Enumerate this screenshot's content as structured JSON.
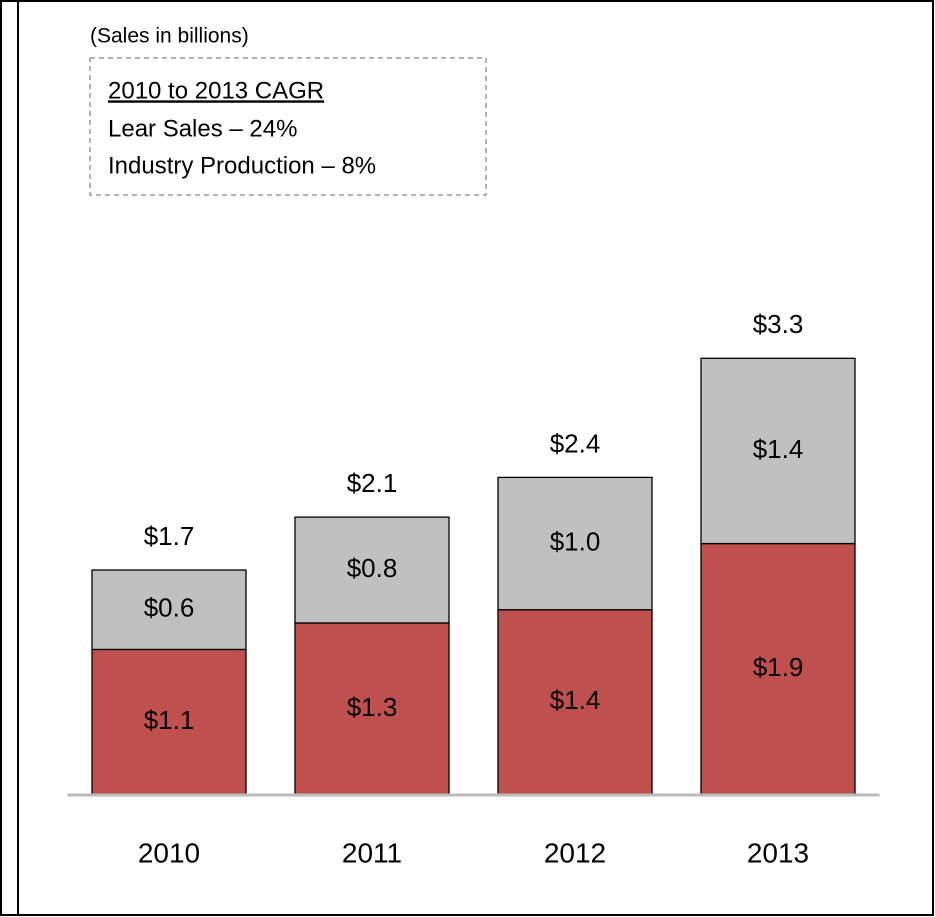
{
  "chart_data": {
    "type": "stacked_bar",
    "subtitle": "(Sales in billions)",
    "annotation": {
      "heading": "2010 to 2013 CAGR",
      "lines": [
        "Lear Sales – 24%",
        "Industry Production – 8%"
      ]
    },
    "categories": [
      "2010",
      "2011",
      "2012",
      "2013"
    ],
    "series": [
      {
        "color": "#c0504d",
        "values": [
          1.1,
          1.3,
          1.4,
          1.9
        ],
        "value_labels": [
          "$1.1",
          "$1.3",
          "$1.4",
          "$1.9"
        ]
      },
      {
        "color": "#c0c0c0",
        "values": [
          0.6,
          0.8,
          1.0,
          1.4
        ],
        "value_labels": [
          "$0.6",
          "$0.8",
          "$1.0",
          "$1.4"
        ]
      }
    ],
    "totals": [
      1.7,
      2.1,
      2.4,
      3.3
    ],
    "total_labels": [
      "$1.7",
      "$2.1",
      "$2.4",
      "$3.3"
    ],
    "ylim": [
      0,
      6
    ]
  }
}
